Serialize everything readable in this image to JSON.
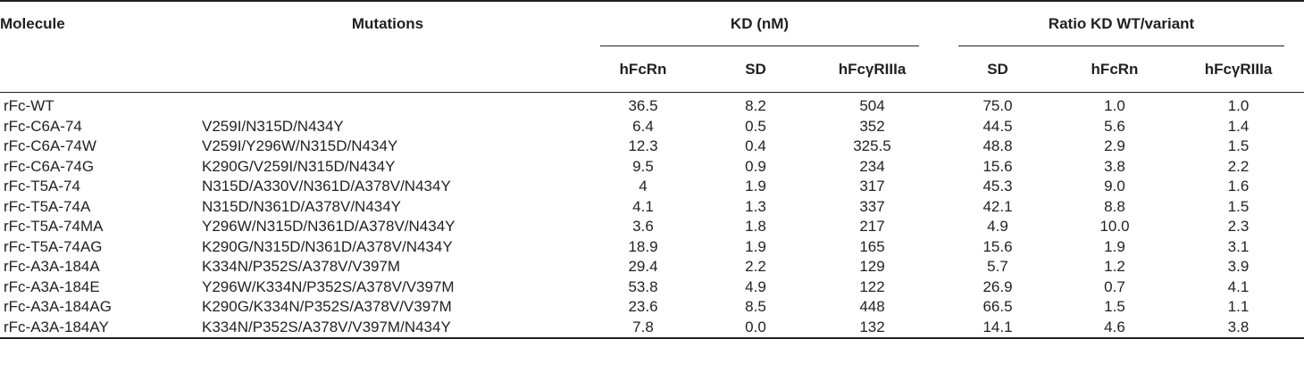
{
  "table": {
    "headers": {
      "molecule": "Molecule",
      "mutations": "Mutations",
      "kd_group": "KD (nM)",
      "ratio_group": "Ratio KD WT/variant",
      "kd_cols": [
        "hFcRn",
        "SD",
        "hFcγRIIIa"
      ],
      "ratio_cols": [
        "SD",
        "hFcRn",
        "hFcγRIIIa"
      ]
    },
    "rows": [
      {
        "molecule": "rFc-WT",
        "mutations": "",
        "kd_fcrn": "36.5",
        "kd_sd": "8.2",
        "kd_fcgr": "504",
        "r_sd": "75.0",
        "r_fcrn": "1.0",
        "r_fcgr": "1.0"
      },
      {
        "molecule": "rFc-C6A-74",
        "mutations": "V259I/N315D/N434Y",
        "kd_fcrn": "6.4",
        "kd_sd": "0.5",
        "kd_fcgr": "352",
        "r_sd": "44.5",
        "r_fcrn": "5.6",
        "r_fcgr": "1.4"
      },
      {
        "molecule": "rFc-C6A-74W",
        "mutations": "V259I/Y296W/N315D/N434Y",
        "kd_fcrn": "12.3",
        "kd_sd": "0.4",
        "kd_fcgr": "325.5",
        "r_sd": "48.8",
        "r_fcrn": "2.9",
        "r_fcgr": "1.5"
      },
      {
        "molecule": "rFc-C6A-74G",
        "mutations": "K290G/V259I/N315D/N434Y",
        "kd_fcrn": "9.5",
        "kd_sd": "0.9",
        "kd_fcgr": "234",
        "r_sd": "15.6",
        "r_fcrn": "3.8",
        "r_fcgr": "2.2"
      },
      {
        "molecule": "rFc-T5A-74",
        "mutations": "N315D/A330V/N361D/A378V/N434Y",
        "kd_fcrn": "4",
        "kd_sd": "1.9",
        "kd_fcgr": "317",
        "r_sd": "45.3",
        "r_fcrn": "9.0",
        "r_fcgr": "1.6"
      },
      {
        "molecule": "rFc-T5A-74A",
        "mutations": "N315D/N361D/A378V/N434Y",
        "kd_fcrn": "4.1",
        "kd_sd": "1.3",
        "kd_fcgr": "337",
        "r_sd": "42.1",
        "r_fcrn": "8.8",
        "r_fcgr": "1.5"
      },
      {
        "molecule": "rFc-T5A-74MA",
        "mutations": "Y296W/N315D/N361D/A378V/N434Y",
        "kd_fcrn": "3.6",
        "kd_sd": "1.8",
        "kd_fcgr": "217",
        "r_sd": "4.9",
        "r_fcrn": "10.0",
        "r_fcgr": "2.3"
      },
      {
        "molecule": "rFc-T5A-74AG",
        "mutations": "K290G/N315D/N361D/A378V/N434Y",
        "kd_fcrn": "18.9",
        "kd_sd": "1.9",
        "kd_fcgr": "165",
        "r_sd": "15.6",
        "r_fcrn": "1.9",
        "r_fcgr": "3.1"
      },
      {
        "molecule": "rFc-A3A-184A",
        "mutations": "K334N/P352S/A378V/V397M",
        "kd_fcrn": "29.4",
        "kd_sd": "2.2",
        "kd_fcgr": "129",
        "r_sd": "5.7",
        "r_fcrn": "1.2",
        "r_fcgr": "3.9"
      },
      {
        "molecule": "rFc-A3A-184E",
        "mutations": "Y296W/K334N/P352S/A378V/V397M",
        "kd_fcrn": "53.8",
        "kd_sd": "4.9",
        "kd_fcgr": "122",
        "r_sd": "26.9",
        "r_fcrn": "0.7",
        "r_fcgr": "4.1"
      },
      {
        "molecule": "rFc-A3A-184AG",
        "mutations": "K290G/K334N/P352S/A378V/V397M",
        "kd_fcrn": "23.6",
        "kd_sd": "8.5",
        "kd_fcgr": "448",
        "r_sd": "66.5",
        "r_fcrn": "1.5",
        "r_fcgr": "1.1"
      },
      {
        "molecule": "rFc-A3A-184AY",
        "mutations": "K334N/P352S/A378V/V397M/N434Y",
        "kd_fcrn": "7.8",
        "kd_sd": "0.0",
        "kd_fcgr": "132",
        "r_sd": "14.1",
        "r_fcrn": "4.6",
        "r_fcgr": "3.8"
      }
    ]
  }
}
